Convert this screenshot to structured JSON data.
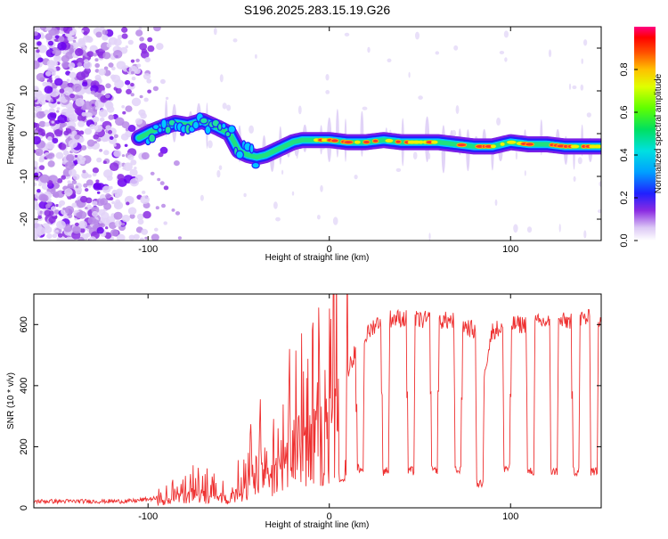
{
  "chart_data": [
    {
      "type": "heatmap",
      "title": "S196.2025.283.15.19.G26",
      "xlabel": "Height of straight line (km)",
      "ylabel": "Frequency (Hz)",
      "xlim": [
        -163,
        150
      ],
      "ylim": [
        -25,
        25
      ],
      "xticks": [
        -100,
        0,
        100
      ],
      "yticks": [
        -20,
        -10,
        0,
        10,
        20
      ],
      "colorbar": {
        "label": "Normalized spectral amplitude",
        "range": [
          0,
          1
        ],
        "ticks": [
          "0.0",
          "0.2",
          "0.4",
          "0.6",
          "0.8"
        ]
      },
      "trace": {
        "x": [
          -105,
          -98,
          -92,
          -85,
          -78,
          -70,
          -62,
          -55,
          -50,
          -45,
          -40,
          -35,
          -30,
          -25,
          -20,
          -15,
          -10,
          -5,
          0,
          10,
          20,
          30,
          40,
          50,
          60,
          70,
          80,
          90,
          100,
          110,
          120,
          130,
          140,
          150
        ],
        "y": [
          -1,
          0.5,
          1.5,
          2.5,
          2,
          3,
          1.5,
          0,
          -4,
          -5,
          -5.5,
          -5,
          -4,
          -3,
          -2,
          -1.5,
          -1.5,
          -1.5,
          -1.5,
          -2,
          -2,
          -1.5,
          -2,
          -2,
          -2,
          -2.5,
          -3,
          -3,
          -2,
          -2.5,
          -2.5,
          -3,
          -3,
          -3
        ]
      },
      "noise_region_x": [
        -163,
        -90
      ]
    },
    {
      "type": "line",
      "title": "",
      "xlabel": "Height of straight line (km)",
      "ylabel": "SNR (10 * v/v)",
      "xlim": [
        -163,
        150
      ],
      "ylim": [
        0,
        700
      ],
      "xticks": [
        -100,
        0,
        100
      ],
      "yticks": [
        0,
        200,
        400,
        600
      ],
      "color": "#ee3030",
      "envelope": {
        "x": [
          -163,
          -110,
          -95,
          -85,
          -75,
          -65,
          -55,
          -45,
          -40,
          -35,
          -30,
          -25,
          -20,
          -15,
          -10,
          -5,
          0,
          5,
          10,
          15,
          20,
          25,
          30,
          40,
          50,
          60,
          70,
          80,
          85,
          90,
          100,
          110,
          120,
          130,
          140,
          150
        ],
        "y": [
          20,
          20,
          30,
          50,
          80,
          60,
          40,
          130,
          180,
          200,
          150,
          250,
          280,
          300,
          300,
          340,
          380,
          440,
          450,
          520,
          560,
          600,
          620,
          620,
          615,
          615,
          610,
          580,
          440,
          580,
          600,
          600,
          610,
          610,
          620,
          620
        ]
      },
      "dips": [
        {
          "x": 7,
          "y": 100
        },
        {
          "x": 17,
          "y": 130
        },
        {
          "x": 31,
          "y": 120
        },
        {
          "x": 45,
          "y": 120
        },
        {
          "x": 58,
          "y": 125
        },
        {
          "x": 71,
          "y": 120
        },
        {
          "x": 83,
          "y": 80
        },
        {
          "x": 98,
          "y": 130
        },
        {
          "x": 111,
          "y": 120
        },
        {
          "x": 124,
          "y": 120
        },
        {
          "x": 136,
          "y": 120
        },
        {
          "x": 146,
          "y": 120
        }
      ]
    }
  ]
}
